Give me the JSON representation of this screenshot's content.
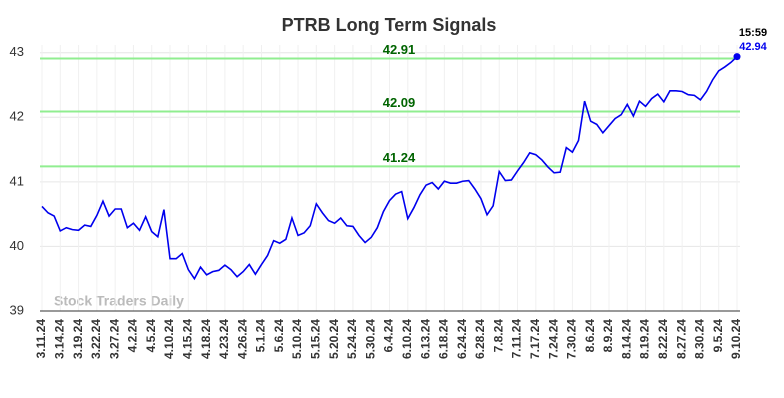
{
  "chart_data": {
    "type": "line",
    "title": "PTRB Long Term Signals",
    "watermark": "Stock Traders Daily",
    "categories": [
      "3.11.24",
      null,
      null,
      "3.14.24",
      null,
      null,
      "3.19.24",
      null,
      null,
      "3.22.24",
      null,
      null,
      "3.27.24",
      null,
      null,
      "4.2.24",
      null,
      null,
      "4.5.24",
      null,
      null,
      "4.10.24",
      null,
      null,
      "4.15.24",
      null,
      null,
      "4.18.24",
      null,
      null,
      "4.23.24",
      null,
      null,
      "4.26.24",
      null,
      null,
      "5.1.24",
      null,
      null,
      "5.6.24",
      null,
      null,
      "5.10.24",
      null,
      null,
      "5.15.24",
      null,
      null,
      "5.20.24",
      null,
      null,
      "5.24.24",
      null,
      null,
      "5.30.24",
      null,
      null,
      "6.4.24",
      null,
      null,
      "6.10.24",
      null,
      null,
      "6.13.24",
      null,
      null,
      "6.18.24",
      null,
      null,
      "6.24.24",
      null,
      null,
      "6.28.24",
      null,
      null,
      "7.8.24",
      null,
      null,
      "7.11.24",
      null,
      null,
      "7.17.24",
      null,
      null,
      "7.24.24",
      null,
      null,
      "7.30.24",
      null,
      null,
      "8.6.24",
      null,
      null,
      "8.9.24",
      null,
      null,
      "8.14.24",
      null,
      null,
      "8.19.24",
      null,
      null,
      "8.22.24",
      null,
      null,
      "8.27.24",
      null,
      null,
      "8.30.24",
      null,
      null,
      "9.5.24",
      null,
      null,
      "9.10.24"
    ],
    "values": [
      40.62,
      40.52,
      40.47,
      40.24,
      40.29,
      40.26,
      40.25,
      40.33,
      40.31,
      40.48,
      40.7,
      40.47,
      40.58,
      40.58,
      40.29,
      40.36,
      40.25,
      40.46,
      40.23,
      40.15,
      40.57,
      39.81,
      39.81,
      39.89,
      39.64,
      39.5,
      39.68,
      39.56,
      39.61,
      39.63,
      39.71,
      39.64,
      39.53,
      39.61,
      39.72,
      39.57,
      39.72,
      39.86,
      40.09,
      40.05,
      40.11,
      40.44,
      40.17,
      40.21,
      40.32,
      40.66,
      40.52,
      40.4,
      40.36,
      40.44,
      40.32,
      40.31,
      40.17,
      40.06,
      40.14,
      40.29,
      40.54,
      40.71,
      40.81,
      40.85,
      40.43,
      40.6,
      40.8,
      40.95,
      40.99,
      40.89,
      41.01,
      40.98,
      40.98,
      41.01,
      41.02,
      40.89,
      40.74,
      40.49,
      40.63,
      41.16,
      41.02,
      41.03,
      41.17,
      41.3,
      41.45,
      41.42,
      41.34,
      41.23,
      41.14,
      41.15,
      41.53,
      41.46,
      41.64,
      42.25,
      41.94,
      41.89,
      41.76,
      41.87,
      41.98,
      42.04,
      42.2,
      42.02,
      42.25,
      42.17,
      42.29,
      42.36,
      42.24,
      42.41,
      42.41,
      42.4,
      42.35,
      42.34,
      42.27,
      42.4,
      42.58,
      42.72,
      42.78,
      42.85,
      42.94
    ],
    "color": "#0000ee",
    "last_time": "15:59",
    "reference_lines": [
      {
        "value": 42.91,
        "color": "#90ee90"
      },
      {
        "value": 42.09,
        "color": "#90ee90"
      },
      {
        "value": 41.24,
        "color": "#90ee90"
      }
    ],
    "reference_label_color": "#006400",
    "ylim": [
      39,
      43.12
    ],
    "yticks": [
      39,
      40,
      41,
      42,
      43
    ],
    "grid": true
  }
}
